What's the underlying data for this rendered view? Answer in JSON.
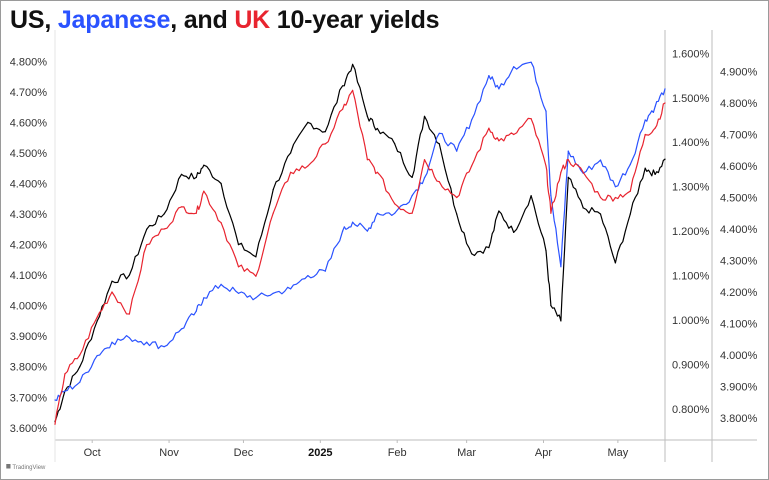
{
  "title": {
    "part_us": "US",
    "sep1": ", ",
    "part_japanese": "Japanese",
    "sep2": ", and ",
    "part_uk": "UK",
    "rest": " 10-year yields"
  },
  "colors": {
    "us": "#000000",
    "japan": "#2a52ff",
    "uk": "#e8242f",
    "grid": "#e6e6e6"
  },
  "watermark": "TradingView",
  "chart_data": {
    "type": "line",
    "x_range": [
      "2024-09-16",
      "2025-05-20"
    ],
    "x_ticks": [
      {
        "date": "2024-10-01",
        "label": "Oct",
        "bold": false
      },
      {
        "date": "2024-11-01",
        "label": "Nov",
        "bold": false
      },
      {
        "date": "2024-12-01",
        "label": "Dec",
        "bold": false
      },
      {
        "date": "2025-01-01",
        "label": "2025",
        "bold": true
      },
      {
        "date": "2025-02-01",
        "label": "Feb",
        "bold": false
      },
      {
        "date": "2025-03-01",
        "label": "Mar",
        "bold": false
      },
      {
        "date": "2025-04-01",
        "label": "Apr",
        "bold": false
      },
      {
        "date": "2025-05-01",
        "label": "May",
        "bold": false
      }
    ],
    "axes": {
      "us": {
        "side": "left",
        "range": [
          3.56,
          4.87
        ],
        "ticks": [
          "3.600%",
          "3.700%",
          "3.800%",
          "3.900%",
          "4.000%",
          "4.100%",
          "4.200%",
          "4.300%",
          "4.400%",
          "4.500%",
          "4.600%",
          "4.700%",
          "4.800%"
        ]
      },
      "japan": {
        "side": "right-inner",
        "range": [
          0.73,
          1.63
        ],
        "ticks": [
          "0.800%",
          "0.900%",
          "1.000%",
          "1.100%",
          "1.200%",
          "1.300%",
          "1.400%",
          "1.500%",
          "1.600%"
        ]
      },
      "uk": {
        "side": "right-outer",
        "range": [
          3.73,
          5.0
        ],
        "ticks": [
          "3.800%",
          "3.900%",
          "4.000%",
          "4.100%",
          "4.200%",
          "4.300%",
          "4.400%",
          "4.500%",
          "4.600%",
          "4.700%",
          "4.800%",
          "4.900%"
        ]
      }
    },
    "grid": false,
    "series": [
      {
        "name": "US",
        "axis": "us",
        "color": "#000000",
        "x": [
          "2024-09-16",
          "2024-09-20",
          "2024-09-26",
          "2024-10-03",
          "2024-10-09",
          "2024-10-16",
          "2024-10-23",
          "2024-10-30",
          "2024-11-06",
          "2024-11-12",
          "2024-11-15",
          "2024-11-22",
          "2024-11-29",
          "2024-12-06",
          "2024-12-13",
          "2024-12-20",
          "2024-12-27",
          "2025-01-03",
          "2025-01-10",
          "2025-01-14",
          "2025-01-20",
          "2025-01-24",
          "2025-01-31",
          "2025-02-07",
          "2025-02-12",
          "2025-02-18",
          "2025-02-25",
          "2025-03-03",
          "2025-03-10",
          "2025-03-14",
          "2025-03-20",
          "2025-03-27",
          "2025-04-02",
          "2025-04-04",
          "2025-04-08",
          "2025-04-11",
          "2025-04-17",
          "2025-04-24",
          "2025-04-30",
          "2025-05-06",
          "2025-05-12",
          "2025-05-16",
          "2025-05-20"
        ],
        "values": [
          3.62,
          3.72,
          3.8,
          3.95,
          4.08,
          4.1,
          4.25,
          4.3,
          4.43,
          4.42,
          4.46,
          4.4,
          4.2,
          4.16,
          4.38,
          4.5,
          4.6,
          4.57,
          4.72,
          4.79,
          4.62,
          4.58,
          4.53,
          4.42,
          4.62,
          4.53,
          4.3,
          4.17,
          4.19,
          4.31,
          4.24,
          4.36,
          4.18,
          4.0,
          3.95,
          4.42,
          4.32,
          4.3,
          4.14,
          4.3,
          4.45,
          4.43,
          4.48
        ]
      },
      {
        "name": "Japanese",
        "axis": "japan",
        "color": "#2a52ff",
        "x": [
          "2024-09-16",
          "2024-09-20",
          "2024-09-26",
          "2024-10-03",
          "2024-10-09",
          "2024-10-16",
          "2024-10-23",
          "2024-10-30",
          "2024-11-06",
          "2024-11-12",
          "2024-11-15",
          "2024-11-22",
          "2024-11-29",
          "2024-12-06",
          "2024-12-13",
          "2024-12-20",
          "2024-12-27",
          "2025-01-03",
          "2025-01-10",
          "2025-01-14",
          "2025-01-20",
          "2025-01-24",
          "2025-01-31",
          "2025-02-07",
          "2025-02-12",
          "2025-02-18",
          "2025-02-25",
          "2025-03-03",
          "2025-03-10",
          "2025-03-14",
          "2025-03-20",
          "2025-03-27",
          "2025-04-02",
          "2025-04-04",
          "2025-04-08",
          "2025-04-11",
          "2025-04-17",
          "2025-04-24",
          "2025-04-30",
          "2025-05-06",
          "2025-05-12",
          "2025-05-16",
          "2025-05-20"
        ],
        "values": [
          0.82,
          0.84,
          0.86,
          0.92,
          0.95,
          0.96,
          0.95,
          0.94,
          0.98,
          1.02,
          1.05,
          1.08,
          1.06,
          1.05,
          1.06,
          1.07,
          1.1,
          1.11,
          1.2,
          1.22,
          1.2,
          1.24,
          1.24,
          1.28,
          1.32,
          1.42,
          1.38,
          1.45,
          1.55,
          1.52,
          1.57,
          1.58,
          1.47,
          1.28,
          1.12,
          1.38,
          1.33,
          1.36,
          1.3,
          1.35,
          1.45,
          1.48,
          1.52
        ]
      },
      {
        "name": "UK",
        "axis": "uk",
        "color": "#e8242f",
        "x": [
          "2024-09-16",
          "2024-09-20",
          "2024-09-26",
          "2024-10-03",
          "2024-10-09",
          "2024-10-16",
          "2024-10-23",
          "2024-10-30",
          "2024-11-06",
          "2024-11-12",
          "2024-11-15",
          "2024-11-22",
          "2024-11-29",
          "2024-12-06",
          "2024-12-13",
          "2024-12-20",
          "2024-12-27",
          "2025-01-03",
          "2025-01-10",
          "2025-01-14",
          "2025-01-20",
          "2025-01-24",
          "2025-01-31",
          "2025-02-07",
          "2025-02-12",
          "2025-02-18",
          "2025-02-25",
          "2025-03-03",
          "2025-03-10",
          "2025-03-14",
          "2025-03-20",
          "2025-03-27",
          "2025-04-02",
          "2025-04-04",
          "2025-04-08",
          "2025-04-11",
          "2025-04-17",
          "2025-04-24",
          "2025-04-30",
          "2025-05-06",
          "2025-05-12",
          "2025-05-16",
          "2025-05-20"
        ],
        "values": [
          3.78,
          3.94,
          4.0,
          4.12,
          4.2,
          4.13,
          4.35,
          4.4,
          4.47,
          4.45,
          4.52,
          4.42,
          4.28,
          4.25,
          4.45,
          4.58,
          4.6,
          4.67,
          4.78,
          4.84,
          4.62,
          4.58,
          4.48,
          4.45,
          4.62,
          4.55,
          4.5,
          4.6,
          4.72,
          4.68,
          4.7,
          4.75,
          4.6,
          4.45,
          4.58,
          4.62,
          4.58,
          4.5,
          4.5,
          4.52,
          4.7,
          4.72,
          4.8
        ]
      }
    ]
  }
}
